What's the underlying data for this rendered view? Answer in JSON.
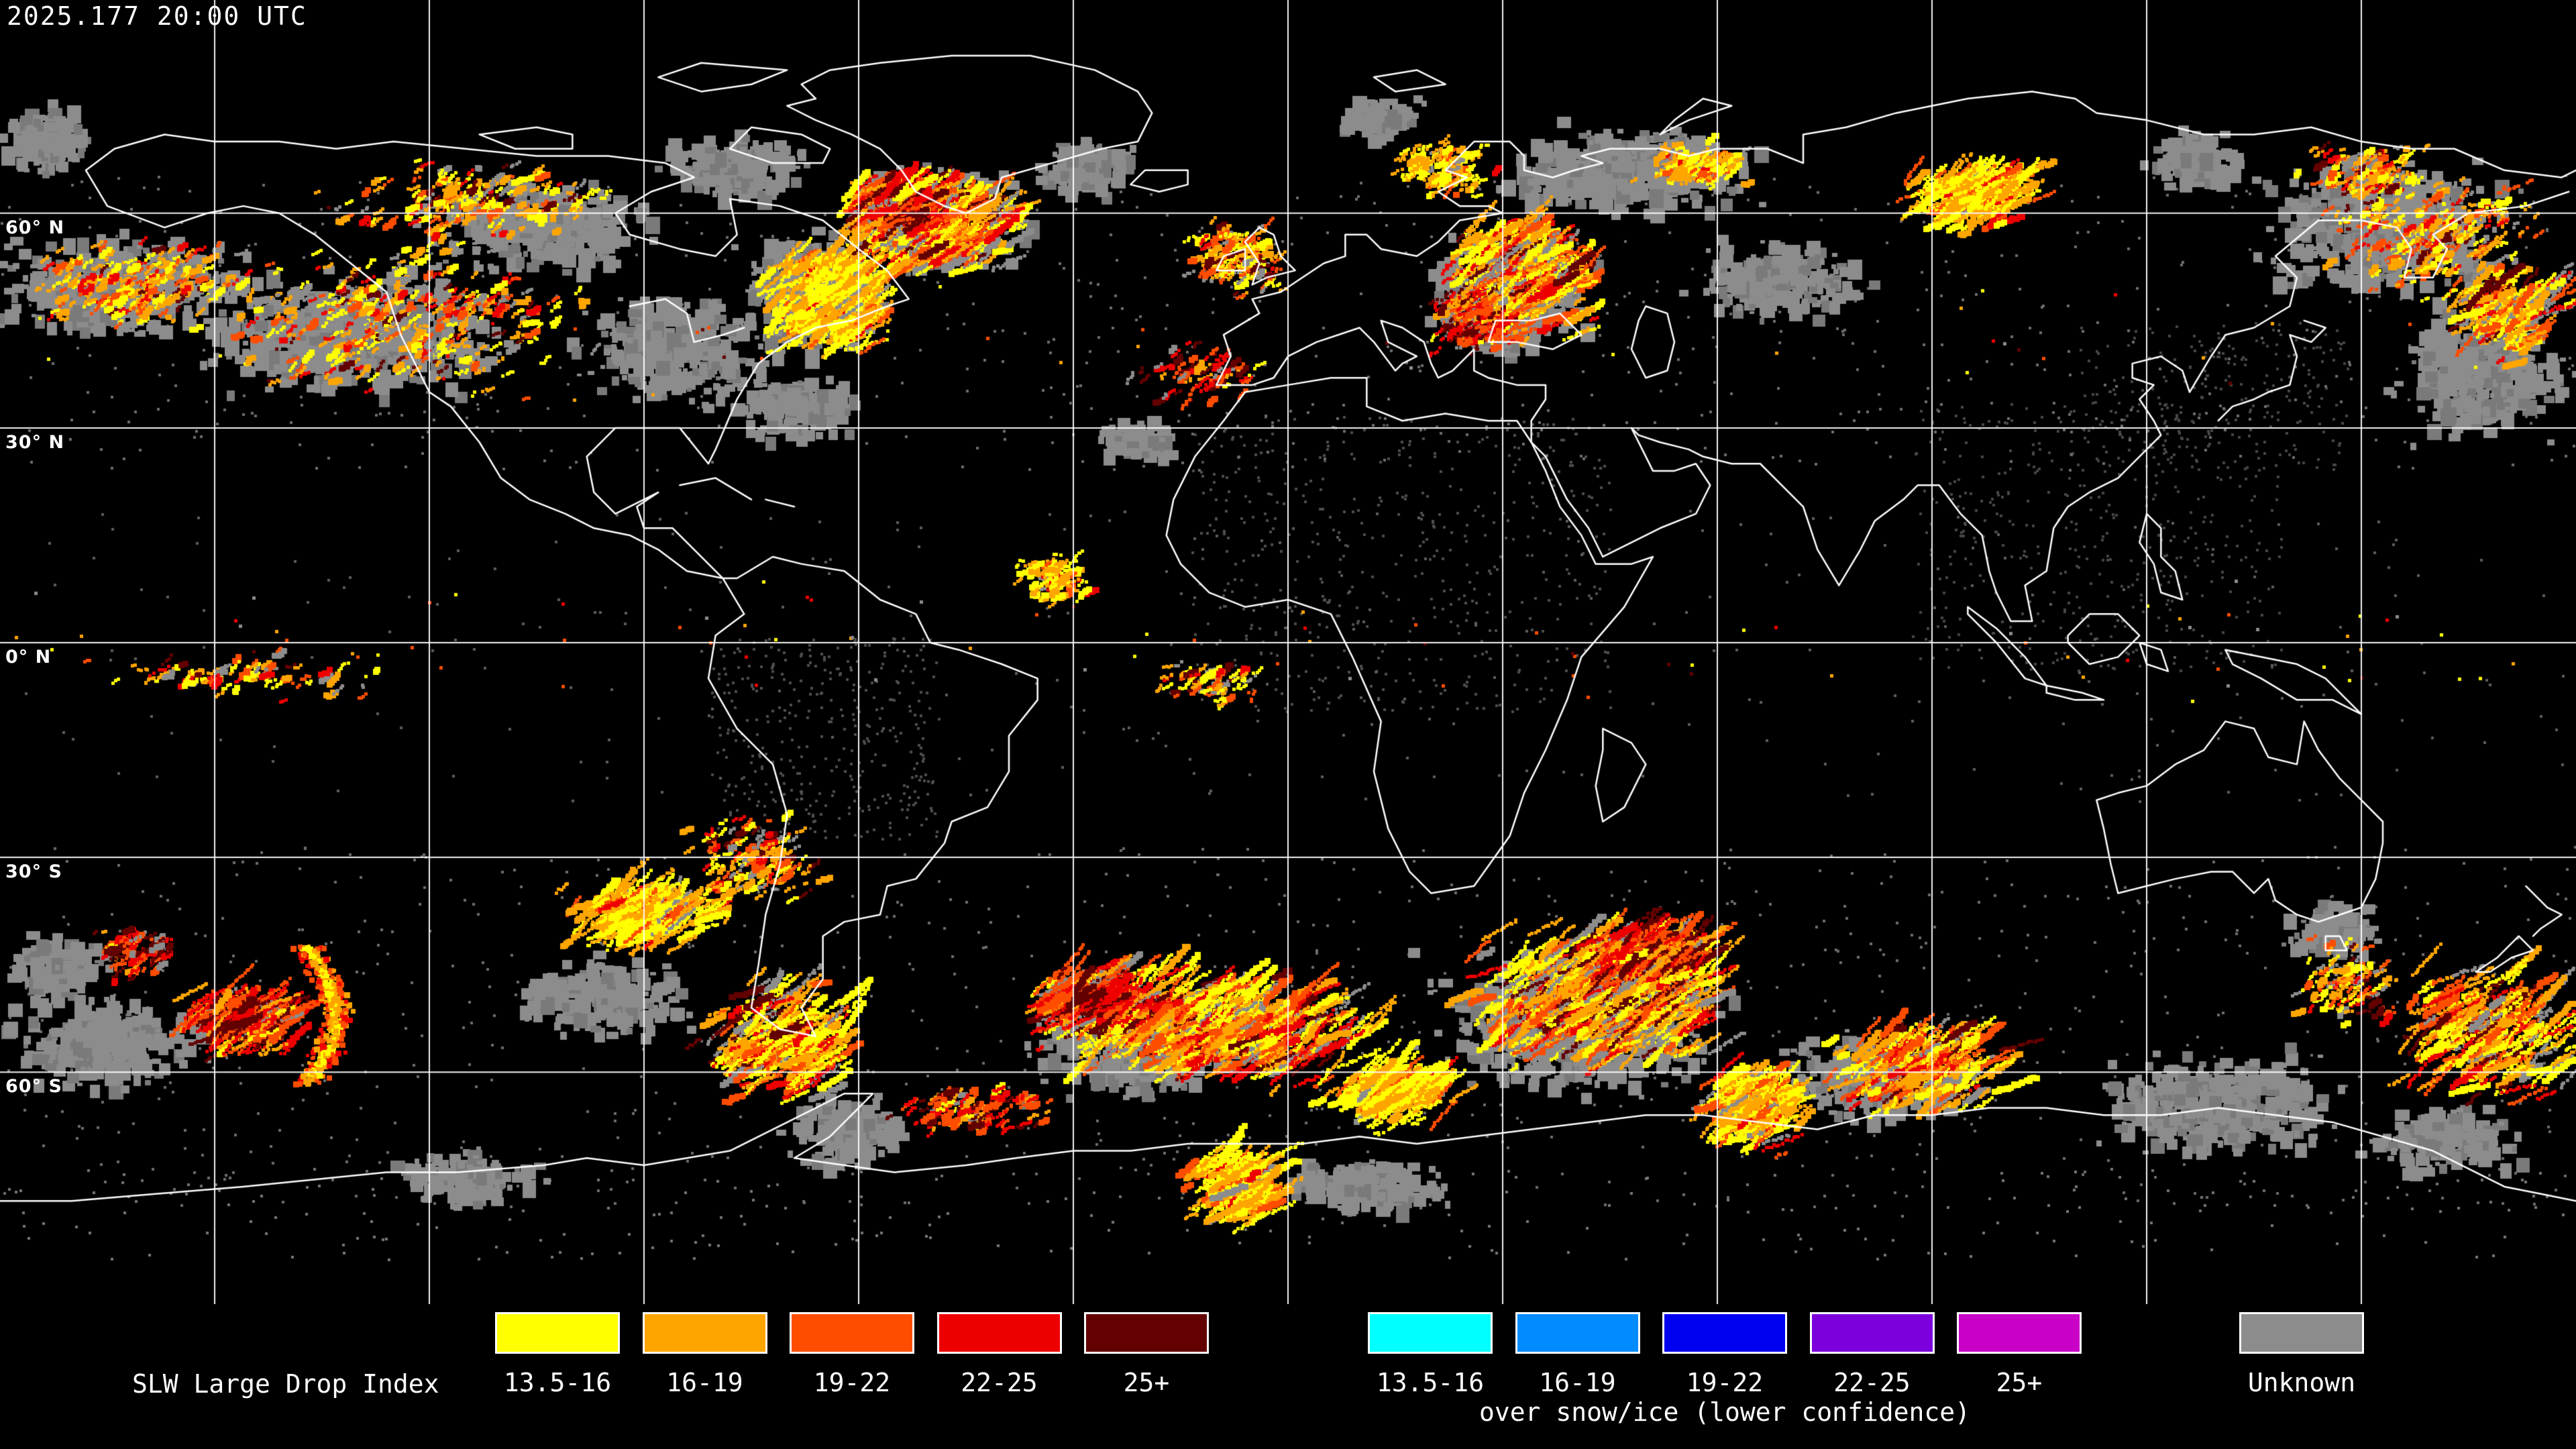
{
  "header": {
    "timestamp": "2025.177 20:00 UTC"
  },
  "map": {
    "background": "#000000",
    "grid_color": "#FFFFFF",
    "coastline_color": "#FFFFFF",
    "grid_lon_spacing_deg": 30,
    "grid_lat_spacing_deg": 30,
    "latitude_labels": [
      {
        "label": "60° N",
        "lat": 60
      },
      {
        "label": "30° N",
        "lat": 30
      },
      {
        "label": "0° N",
        "lat": 0
      },
      {
        "label": "30° S",
        "lat": -30
      },
      {
        "label": "60° S",
        "lat": -60
      }
    ],
    "unknown_fill_color": "#8C8C8C",
    "faint_speckle_color": "#4E4E4E"
  },
  "legend": {
    "title": "SLW Large Drop Index",
    "groups": [
      {
        "name": "standard",
        "items": [
          {
            "label": "13.5-16",
            "color": "#FFFF00"
          },
          {
            "label": "16-19",
            "color": "#FFA500"
          },
          {
            "label": "19-22",
            "color": "#FF4D00"
          },
          {
            "label": "22-25",
            "color": "#EE0000"
          },
          {
            "label": "25+",
            "color": "#630000"
          }
        ]
      },
      {
        "name": "snow_ice",
        "caption": "over snow/ice (lower confidence)",
        "items": [
          {
            "label": "13.5-16",
            "color": "#00FFFF"
          },
          {
            "label": "16-19",
            "color": "#008CFF"
          },
          {
            "label": "19-22",
            "color": "#0000F0"
          },
          {
            "label": "22-25",
            "color": "#7B00DC"
          },
          {
            "label": "25+",
            "color": "#C800C8"
          }
        ]
      },
      {
        "name": "unknown",
        "items": [
          {
            "label": "Unknown",
            "color": "#8C8C8C"
          }
        ]
      }
    ]
  }
}
